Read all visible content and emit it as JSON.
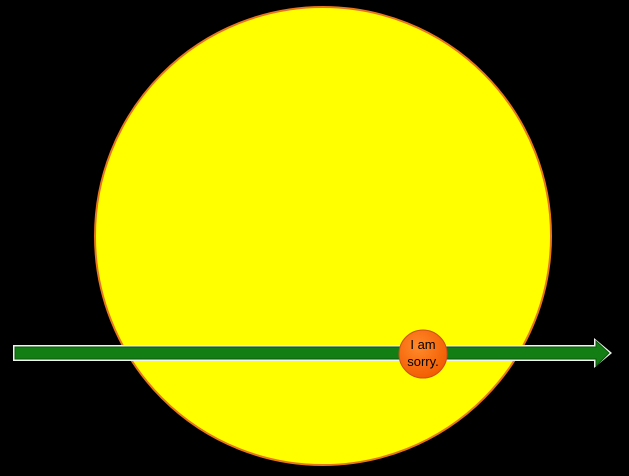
{
  "diagram": {
    "background_color": "#000000",
    "big_circle": {
      "fill": "#FFFF00",
      "stroke": "#E8761E"
    },
    "arrow": {
      "fill": "#137E13",
      "edge": "#0A5A0A",
      "highlight": "#F2F2F2"
    },
    "bubble": {
      "fill": "#FF6A00",
      "stroke": "#C8501A",
      "text_line1": "I am",
      "text_line2": "sorry."
    }
  }
}
